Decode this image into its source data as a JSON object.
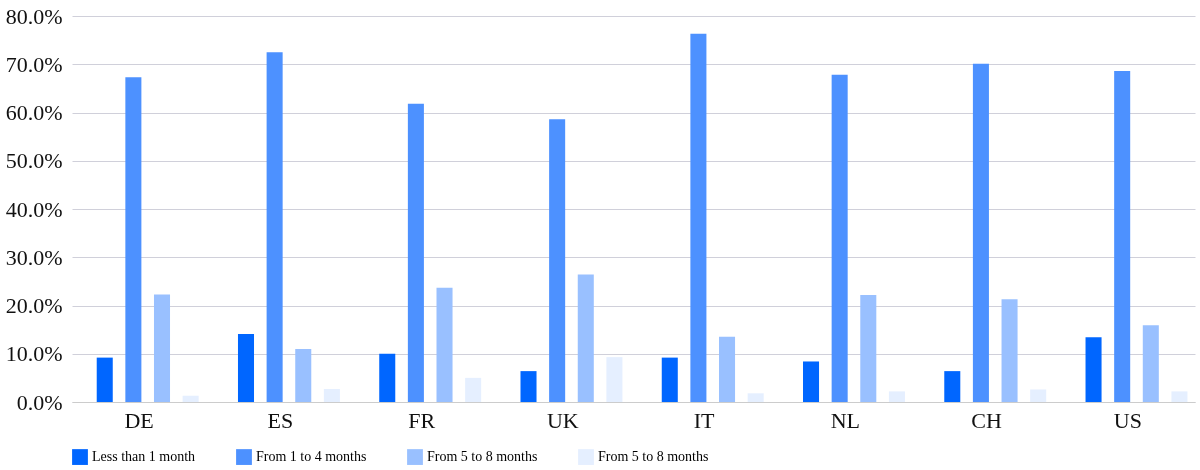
{
  "chart_data": {
    "type": "bar",
    "categories": [
      "DE",
      "ES",
      "FR",
      "UK",
      "IT",
      "NL",
      "CH",
      "US"
    ],
    "series": [
      {
        "name": "Less than 1 month",
        "color": "#0066ff",
        "values": [
          9.2,
          14.1,
          10.0,
          6.4,
          9.2,
          8.4,
          6.4,
          13.4
        ]
      },
      {
        "name": "From 1 to 4 months",
        "color": "#4d91ff",
        "values": [
          67.3,
          72.5,
          61.8,
          58.6,
          76.3,
          67.8,
          70.1,
          68.6
        ]
      },
      {
        "name": "From 5 to 8 months",
        "color": "#99c0ff",
        "values": [
          22.3,
          11.0,
          23.7,
          26.4,
          13.5,
          22.2,
          21.3,
          15.9
        ]
      },
      {
        "name": "From 5 to 8 months",
        "color": "#e5efff",
        "values": [
          1.3,
          2.7,
          5.0,
          9.3,
          1.8,
          2.2,
          2.6,
          2.2
        ]
      }
    ],
    "ylim": [
      0,
      80
    ],
    "yticks": [
      {
        "value": 0,
        "label": "0.0%"
      },
      {
        "value": 10,
        "label": "10.0%"
      },
      {
        "value": 20,
        "label": "20.0%"
      },
      {
        "value": 30,
        "label": "30.0%"
      },
      {
        "value": 40,
        "label": "40.0%"
      },
      {
        "value": 50,
        "label": "50.0%"
      },
      {
        "value": 60,
        "label": "60.0%"
      },
      {
        "value": 70,
        "label": "70.0%"
      },
      {
        "value": 80,
        "label": "80.0%"
      }
    ],
    "grid": "y",
    "legend": "bottom"
  }
}
